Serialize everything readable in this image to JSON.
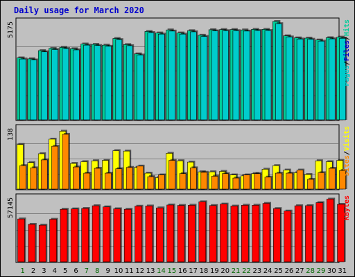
{
  "chart_data": {
    "type": "bar",
    "title": "Daily usage for March 2020",
    "days": [
      "1",
      "2",
      "3",
      "4",
      "5",
      "6",
      "7",
      "8",
      "9",
      "10",
      "11",
      "12",
      "13",
      "14",
      "15",
      "16",
      "17",
      "18",
      "19",
      "20",
      "21",
      "22",
      "23",
      "24",
      "25",
      "26",
      "27",
      "28",
      "29",
      "30",
      "31"
    ],
    "weekend_days": [
      1,
      7,
      8,
      14,
      15,
      21,
      22,
      28,
      29
    ],
    "colors": {
      "title": "#0000CC",
      "pages": "#00CCCC",
      "files": "#0000CC",
      "hits": "#00CC99",
      "visits": "#FFFF00",
      "sites": "#FF8800",
      "kbytes": "#FF0000",
      "weekend_label": "#006600",
      "weekday_label": "#000000"
    },
    "panels": [
      {
        "id": "hits_files_pages",
        "ymax": 5175,
        "ytick_label": "5175",
        "legend": [
          {
            "label": "Pages",
            "color": "#00CCCC"
          },
          {
            "label": "Files",
            "color": "#0000CC"
          },
          {
            "label": "Hits",
            "color": "#00CC99"
          }
        ],
        "series": [
          {
            "name": "Hits",
            "color": "#00CC99",
            "values": [
              3260,
              3210,
              3640,
              3760,
              3810,
              3740,
              3990,
              3970,
              3930,
              4280,
              3960,
              3470,
              4650,
              4570,
              4730,
              4570,
              4690,
              4450,
              4740,
              4750,
              4750,
              4730,
              4760,
              4760,
              5175,
              4420,
              4310,
              4300,
              4200,
              4320,
              4350
            ]
          },
          {
            "name": "Pages",
            "color": "#00CCCC",
            "values": [
              3200,
              3150,
              3580,
              3700,
              3750,
              3680,
              3930,
              3910,
              3870,
              4220,
              3900,
              3410,
              4590,
              4510,
              4670,
              4510,
              4630,
              4390,
              4680,
              4690,
              4690,
              4670,
              4700,
              4700,
              5060,
              4360,
              4250,
              4240,
              4140,
              4260,
              4290
            ]
          }
        ]
      },
      {
        "id": "visits_sites",
        "ymax": 138,
        "ytick_label": "138",
        "legend": [
          {
            "label": "Sites",
            "color": "#FF8800"
          },
          {
            "label": "Visits",
            "color": "#FFFF00"
          }
        ],
        "series": [
          {
            "name": "Visits",
            "color": "#FFFF00",
            "values": [
              101,
              60,
              80,
              113,
              131,
              58,
              62,
              64,
              65,
              87,
              86,
              49,
              36,
              26,
              81,
              64,
              61,
              39,
              39,
              40,
              32,
              30,
              35,
              45,
              53,
              43,
              37,
              33,
              64,
              62,
              65
            ]
          },
          {
            "name": "Sites",
            "color": "#FF8800",
            "values": [
              53,
              48,
              66,
              97,
              124,
              50,
              36,
              47,
              36,
              46,
              49,
              52,
              28,
              32,
              65,
              35,
              48,
              38,
              29,
              35,
              25,
              32,
              35,
              27,
              36,
              36,
              43,
              22,
              37,
              47,
              42
            ]
          }
        ]
      },
      {
        "id": "kbytes",
        "ymax": 57145,
        "ytick_label": "57145",
        "legend": [
          {
            "label": "KBytes",
            "color": "#FF0000"
          }
        ],
        "series": [
          {
            "name": "KBytes",
            "color": "#FF0000",
            "values": [
              38000,
              33200,
              32500,
              37700,
              46600,
              46900,
              47300,
              49700,
              48700,
              47000,
              46600,
              49300,
              49500,
              47800,
              50400,
              50000,
              50200,
              53200,
              49900,
              51200,
              49400,
              50200,
              50200,
              51800,
              47200,
              45000,
              49700,
              49800,
              52500,
              55600,
              51000
            ]
          }
        ]
      }
    ]
  }
}
